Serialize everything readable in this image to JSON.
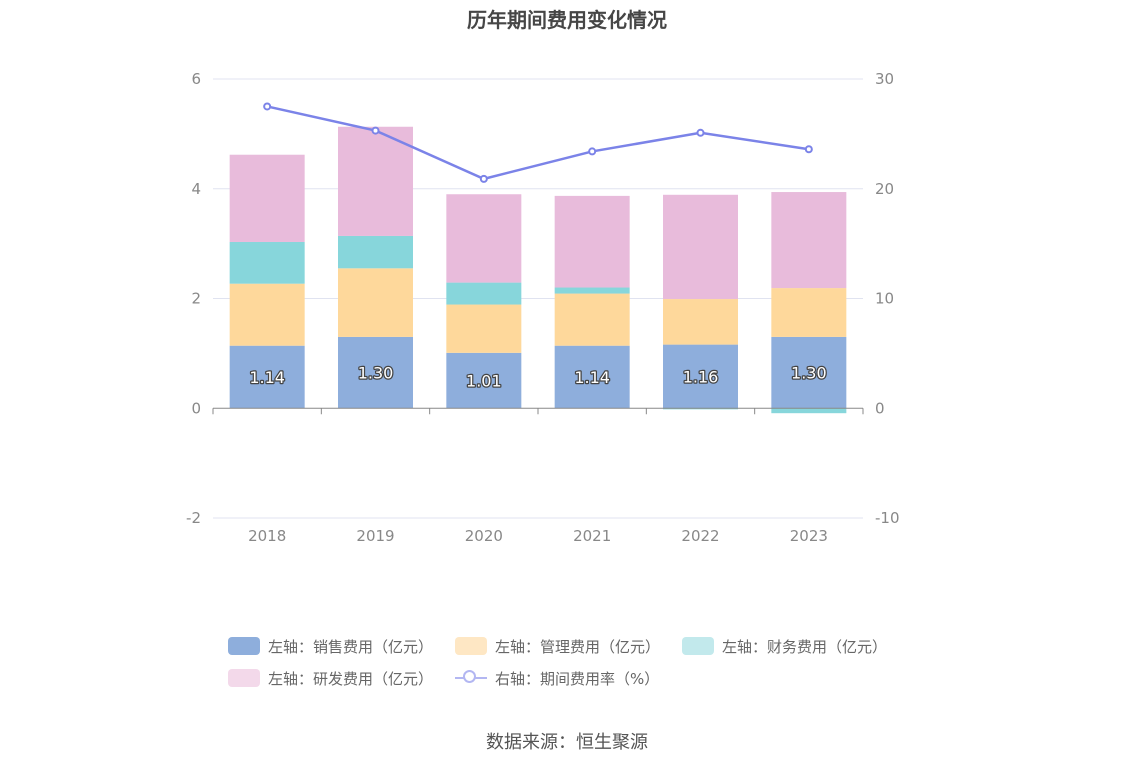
{
  "title": "历年期间费用变化情况",
  "source": "数据来源：恒生聚源",
  "chart_data": {
    "type": "bar",
    "stacked": true,
    "categories": [
      "2018",
      "2019",
      "2020",
      "2021",
      "2022",
      "2023"
    ],
    "y_left": {
      "ylim": [
        -2,
        6
      ],
      "ticks": [
        "-2",
        "0",
        "2",
        "4",
        "6"
      ]
    },
    "y_right": {
      "ylim": [
        -10,
        30
      ],
      "ticks": [
        "-10",
        "0",
        "10",
        "20",
        "30"
      ]
    },
    "series": [
      {
        "name": "左轴：销售费用（亿元）",
        "axis": "left",
        "color": "#8eaedc",
        "values": [
          1.14,
          1.3,
          1.01,
          1.14,
          1.16,
          1.3
        ],
        "labels": [
          "1.14",
          "1.30",
          "1.01",
          "1.14",
          "1.16",
          "1.30"
        ]
      },
      {
        "name": "左轴：管理费用（亿元）",
        "axis": "left",
        "color": "#fed89b",
        "values": [
          1.13,
          1.25,
          0.88,
          0.95,
          0.83,
          0.89
        ]
      },
      {
        "name": "左轴：财务费用（亿元）",
        "axis": "left",
        "color": "#87d6db",
        "values": [
          0.76,
          0.59,
          0.4,
          0.11,
          -0.02,
          -0.09
        ]
      },
      {
        "name": "左轴：研发费用（亿元）",
        "axis": "left",
        "color": "#e8bbdb",
        "values": [
          1.59,
          1.99,
          1.61,
          1.67,
          1.9,
          1.75
        ]
      },
      {
        "name": "右轴：期间费用率（%）",
        "axis": "right",
        "type": "line",
        "color": "#7b83e8",
        "values": [
          27.5,
          25.3,
          20.9,
          23.4,
          25.1,
          23.6
        ]
      }
    ],
    "grid": true,
    "legend_position": "bottom"
  }
}
